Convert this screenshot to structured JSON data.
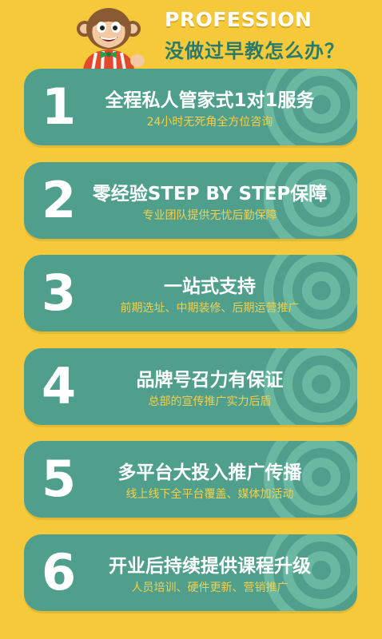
{
  "header": {
    "title_en": "PROFESSION",
    "title_zh": "没做过早教怎么办？",
    "mascot_icon": "monkey-mascot"
  },
  "colors": {
    "background": "#f6c93a",
    "card": "#4f9f8c",
    "subtitle": "#f3d04d",
    "title_zh": "#2a7a6c"
  },
  "cards": [
    {
      "number": "1",
      "title": "全程私人管家式1对1服务",
      "subtitle": "24小时无死角全方位咨询"
    },
    {
      "number": "2",
      "title": "零经验STEP BY STEP保障",
      "subtitle": "专业团队提供无忧后勤保障"
    },
    {
      "number": "3",
      "title": "一站式支持",
      "subtitle": "前期选址、中期装修、后期运营推广"
    },
    {
      "number": "4",
      "title": "品牌号召力有保证",
      "subtitle": "总部的宣传推广实力后盾"
    },
    {
      "number": "5",
      "title": "多平台大投入推广传播",
      "subtitle": "线上线下全平台覆盖、媒体加活动"
    },
    {
      "number": "6",
      "title": "开业后持续提供课程升级",
      "subtitle": "人员培训、硬件更新、营销推广"
    }
  ]
}
